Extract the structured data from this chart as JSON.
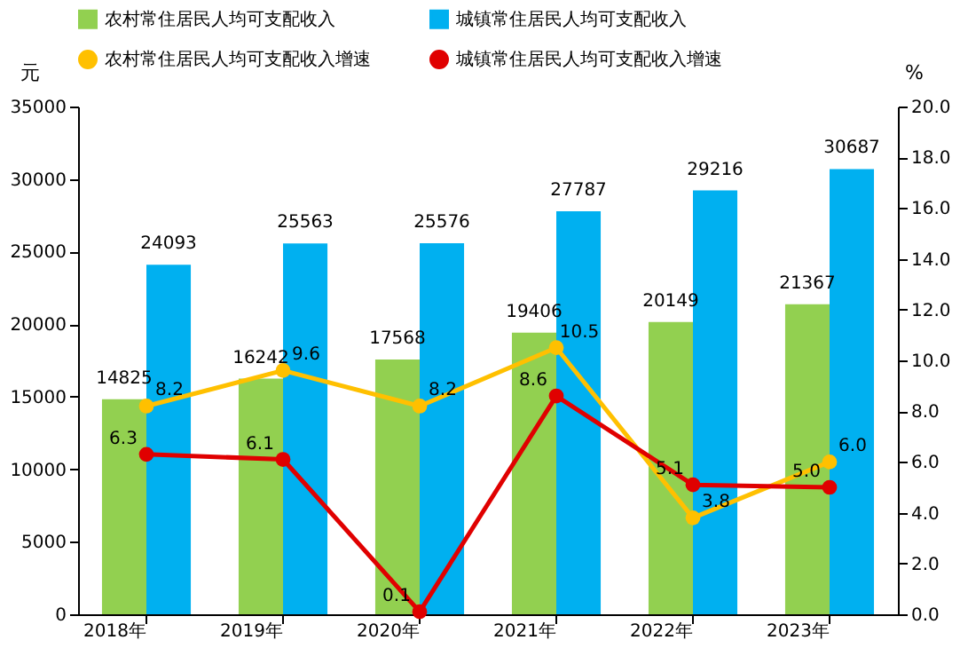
{
  "chart_data": {
    "type": "bar",
    "categories": [
      "2018年",
      "2019年",
      "2020年",
      "2021年",
      "2022年",
      "2023年"
    ],
    "ylabel": "元",
    "y2label": "%",
    "ylim": [
      0,
      35000
    ],
    "yticks": [
      0,
      5000,
      10000,
      15000,
      20000,
      25000,
      30000,
      35000
    ],
    "y2lim": [
      0,
      20
    ],
    "y2ticks": [
      {
        "value": 0,
        "label": "0.0"
      },
      {
        "value": 2,
        "label": "2.0"
      },
      {
        "value": 4,
        "label": "4.0"
      },
      {
        "value": 6,
        "label": "6.0"
      },
      {
        "value": 8,
        "label": "8.0"
      },
      {
        "value": 10,
        "label": "10.0"
      },
      {
        "value": 12,
        "label": "12.0"
      },
      {
        "value": 14,
        "label": "14.0"
      },
      {
        "value": 16,
        "label": "16.0"
      },
      {
        "value": 18,
        "label": "18.0"
      },
      {
        "value": 20,
        "label": "20.0"
      }
    ],
    "series": [
      {
        "name": "农村常住居民人均可支配收入",
        "color": "#92d050",
        "values": [
          14825,
          16242,
          17568,
          19406,
          20149,
          21367
        ]
      },
      {
        "name": "城镇常住居民人均可支配收入",
        "color": "#00b0f0",
        "values": [
          24093,
          25563,
          25576,
          27787,
          29216,
          30687
        ]
      },
      {
        "name": "农村常住居民人均可支配收入增速",
        "type": "line",
        "axis": "y2",
        "color": "#ffc000",
        "values": [
          8.2,
          9.6,
          8.2,
          10.5,
          3.8,
          6.0
        ],
        "value_labels": [
          "8.2",
          "9.6",
          "8.2",
          "10.5",
          "3.8",
          "6.0"
        ]
      },
      {
        "name": "城镇常住居民人均可支配收入增速",
        "type": "line",
        "axis": "y2",
        "color": "#e00000",
        "values": [
          6.3,
          6.1,
          0.1,
          8.6,
          5.1,
          5.0
        ],
        "value_labels": [
          "6.3",
          "6.1",
          "0.1",
          "8.6",
          "5.1",
          "5.0"
        ]
      }
    ],
    "data_labels": true,
    "marker": "circle",
    "line_style": "solid",
    "grid": false,
    "legend": "top"
  }
}
